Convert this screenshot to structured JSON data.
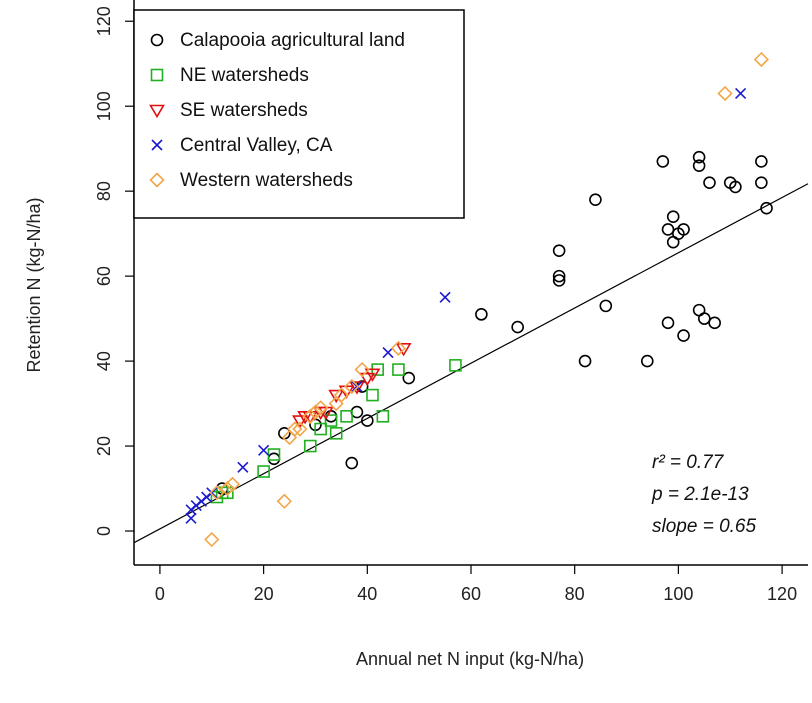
{
  "chart_data": {
    "type": "scatter",
    "xlabel": "Annual net N input (kg-N/ha)",
    "ylabel": "Retention N (kg-N/ha)",
    "xlim": [
      -5,
      125
    ],
    "ylim": [
      -8,
      125
    ],
    "x_ticks": [
      "0",
      "20",
      "40",
      "60",
      "80",
      "100",
      "120"
    ],
    "y_ticks": [
      "0",
      "20",
      "40",
      "60",
      "80",
      "100",
      "120"
    ],
    "grid": false,
    "legend_position": "top-left",
    "colors": {
      "calapooia": "#000000",
      "ne": "#22b022",
      "se": "#e01010",
      "central": "#1a1ad0",
      "western": "#f2a64a",
      "fit_line": "#000000"
    },
    "series": [
      {
        "name": "Calapooia agricultural land",
        "marker": "circle",
        "color_key": "calapooia",
        "points": [
          [
            12,
            10
          ],
          [
            22,
            17
          ],
          [
            24,
            23
          ],
          [
            30,
            25
          ],
          [
            33,
            27
          ],
          [
            37,
            16
          ],
          [
            38,
            28
          ],
          [
            39,
            34
          ],
          [
            40,
            26
          ],
          [
            48,
            36
          ],
          [
            62,
            51
          ],
          [
            69,
            48
          ],
          [
            77,
            66
          ],
          [
            77,
            60
          ],
          [
            77,
            59
          ],
          [
            82,
            40
          ],
          [
            84,
            78
          ],
          [
            86,
            53
          ],
          [
            94,
            40
          ],
          [
            97,
            87
          ],
          [
            98,
            71
          ],
          [
            98,
            49
          ],
          [
            99,
            74
          ],
          [
            99,
            68
          ],
          [
            100,
            70
          ],
          [
            101,
            71
          ],
          [
            101,
            46
          ],
          [
            104,
            86
          ],
          [
            104,
            88
          ],
          [
            104,
            52
          ],
          [
            105,
            50
          ],
          [
            106,
            82
          ],
          [
            107,
            49
          ],
          [
            110,
            82
          ],
          [
            111,
            81
          ],
          [
            116,
            87
          ],
          [
            116,
            82
          ],
          [
            117,
            76
          ]
        ]
      },
      {
        "name": "NE watersheds",
        "marker": "square",
        "color_key": "ne",
        "points": [
          [
            11,
            8
          ],
          [
            12,
            9
          ],
          [
            13,
            9
          ],
          [
            20,
            14
          ],
          [
            22,
            18
          ],
          [
            29,
            20
          ],
          [
            31,
            24
          ],
          [
            33,
            26
          ],
          [
            34,
            23
          ],
          [
            36,
            27
          ],
          [
            41,
            32
          ],
          [
            42,
            38
          ],
          [
            43,
            27
          ],
          [
            46,
            38
          ],
          [
            57,
            39
          ]
        ]
      },
      {
        "name": "SE watersheds",
        "marker": "triangle-down",
        "color_key": "se",
        "points": [
          [
            27,
            26
          ],
          [
            28,
            27
          ],
          [
            29,
            27
          ],
          [
            31,
            28
          ],
          [
            32,
            28
          ],
          [
            34,
            32
          ],
          [
            36,
            33
          ],
          [
            38,
            34
          ],
          [
            40,
            36
          ],
          [
            41,
            37
          ],
          [
            47,
            43
          ]
        ]
      },
      {
        "name": "Central Valley, CA",
        "marker": "x",
        "color_key": "central",
        "points": [
          [
            6,
            3
          ],
          [
            6,
            5
          ],
          [
            7,
            6
          ],
          [
            8,
            7
          ],
          [
            9,
            8
          ],
          [
            10,
            9
          ],
          [
            16,
            15
          ],
          [
            20,
            19
          ],
          [
            38,
            34
          ],
          [
            44,
            42
          ],
          [
            55,
            55
          ],
          [
            112,
            103
          ]
        ]
      },
      {
        "name": "Western watersheds",
        "marker": "diamond",
        "color_key": "western",
        "points": [
          [
            10,
            -2
          ],
          [
            11,
            9
          ],
          [
            13,
            10
          ],
          [
            14,
            11
          ],
          [
            24,
            7
          ],
          [
            25,
            22
          ],
          [
            26,
            24
          ],
          [
            27,
            24
          ],
          [
            29,
            27
          ],
          [
            30,
            28
          ],
          [
            31,
            29
          ],
          [
            34,
            30
          ],
          [
            35,
            32
          ],
          [
            37,
            34
          ],
          [
            39,
            38
          ],
          [
            46,
            43
          ],
          [
            109,
            103
          ],
          [
            116,
            111
          ]
        ]
      }
    ],
    "fit_line": {
      "slope": 0.65,
      "intercept": 0.5
    },
    "annotations": {
      "r2_label": "r² = 0.77",
      "p_label": "p = 2.1e-13",
      "slope_label": "slope = 0.65"
    }
  }
}
